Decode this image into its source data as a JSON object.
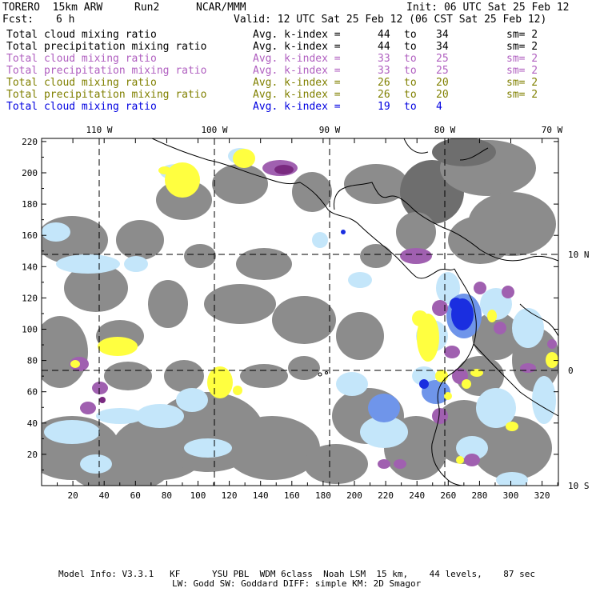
{
  "header": {
    "model": "TORERO  15km ARW",
    "run": "Run2",
    "org": "NCAR/MMM",
    "init": "Init: 06 UTC Sat 25 Feb 12",
    "fcst_label": "Fcst:",
    "fcst_value": "6 h",
    "valid": "Valid: 12 UTC Sat 25 Feb 12 (06 CST Sat 25 Feb 12)"
  },
  "legend": [
    {
      "field": "Total cloud mixing ratio",
      "index": "Avg. k-index =",
      "from": "44",
      "to_word": "to",
      "to": "34",
      "sm": "sm= 2",
      "color": "#000000"
    },
    {
      "field": "Total precipitation mixing ratio",
      "index": "Avg. k-index =",
      "from": "44",
      "to_word": "to",
      "to": "34",
      "sm": "sm= 2",
      "color": "#000000"
    },
    {
      "field": "Total cloud mixing ratio",
      "index": "Avg. k-index =",
      "from": "33",
      "to_word": "to",
      "to": "25",
      "sm": "sm= 2",
      "color": "#b060c0"
    },
    {
      "field": "Total precipitation mixing ratio",
      "index": "Avg. k-index =",
      "from": "33",
      "to_word": "to",
      "to": "25",
      "sm": "sm= 2",
      "color": "#b060c0"
    },
    {
      "field": "Total cloud mixing ratio",
      "index": "Avg. k-index =",
      "from": "26",
      "to_word": "to",
      "to": "20",
      "sm": "sm= 2",
      "color": "#808000"
    },
    {
      "field": "Total precipitation mixing ratio",
      "index": "Avg. k-index =",
      "from": "26",
      "to_word": "to",
      "to": "20",
      "sm": "sm= 2",
      "color": "#808000"
    },
    {
      "field": "Total cloud mixing ratio",
      "index": "Avg. k-index =",
      "from": "19",
      "to_word": "to",
      "to": "4",
      "sm": "",
      "color": "#0000e0"
    }
  ],
  "map": {
    "lon_labels": [
      "110 W",
      "100 W",
      "90 W",
      "80 W",
      "70 W"
    ],
    "lat_labels": [
      "10 N",
      "0",
      "10 S"
    ],
    "x_ticks": [
      "20",
      "40",
      "60",
      "80",
      "100",
      "120",
      "140",
      "160",
      "180",
      "200",
      "220",
      "240",
      "260",
      "280",
      "300",
      "320"
    ],
    "y_ticks": [
      "20",
      "40",
      "60",
      "80",
      "100",
      "120",
      "140",
      "160",
      "180",
      "200",
      "220"
    ],
    "colors": {
      "gray": "#8c8c8c",
      "gray_dark": "#6e6e6e",
      "light_blue": "#c4e6fa",
      "blue": "#1a2ee0",
      "mid_blue": "#6f95ea",
      "purple": "#a060b0",
      "dark_purple": "#7a2a80",
      "yellow": "#ffff40",
      "coast": "#000000"
    }
  },
  "footer": {
    "line1": "Model Info: V3.3.1   KF      YSU PBL  WDM 6class  Noah LSM  15 km,    44 levels,    87 sec",
    "line2": "LW: Godd SW: Goddard DIFF: simple KM: 2D Smagor"
  }
}
